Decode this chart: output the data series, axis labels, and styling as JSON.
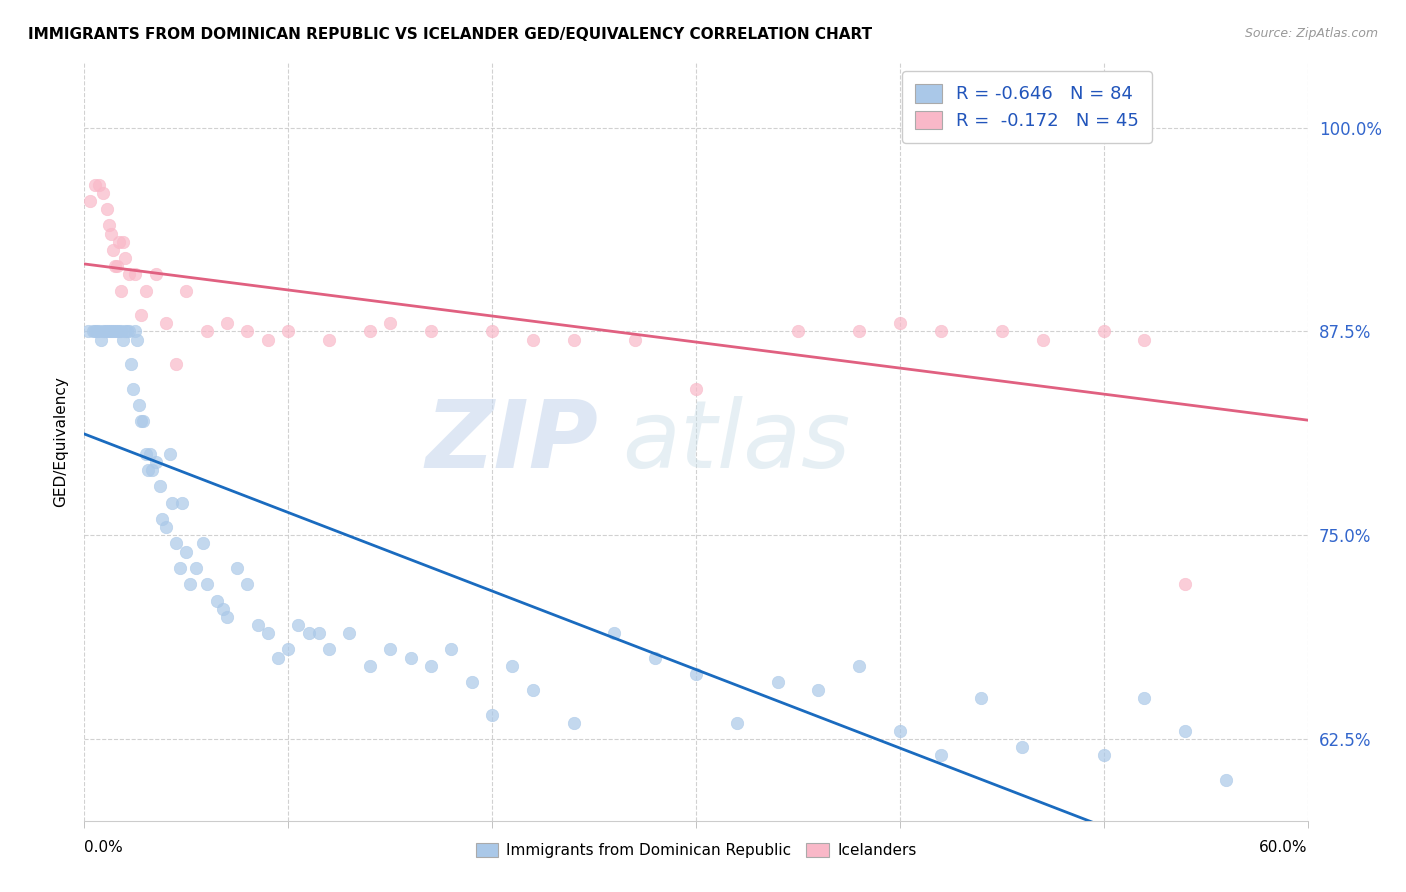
{
  "title": "IMMIGRANTS FROM DOMINICAN REPUBLIC VS ICELANDER GED/EQUIVALENCY CORRELATION CHART",
  "source": "Source: ZipAtlas.com",
  "ylabel": "GED/Equivalency",
  "ytick_labels": [
    "100.0%",
    "87.5%",
    "75.0%",
    "62.5%"
  ],
  "ytick_values": [
    1.0,
    0.875,
    0.75,
    0.625
  ],
  "xlim": [
    0.0,
    0.6
  ],
  "ylim": [
    0.575,
    1.04
  ],
  "blue_R": -0.646,
  "blue_N": 84,
  "pink_R": -0.172,
  "pink_N": 45,
  "blue_color": "#aac8e8",
  "blue_line_color": "#1a6bbf",
  "pink_color": "#f9b8c8",
  "pink_line_color": "#e06080",
  "watermark_zip": "ZIP",
  "watermark_atlas": "atlas",
  "legend_blue_label": "Immigrants from Dominican Republic",
  "legend_pink_label": "Icelanders",
  "blue_x": [
    0.002,
    0.004,
    0.005,
    0.006,
    0.007,
    0.008,
    0.009,
    0.01,
    0.011,
    0.012,
    0.013,
    0.014,
    0.015,
    0.016,
    0.017,
    0.018,
    0.019,
    0.02,
    0.021,
    0.022,
    0.023,
    0.024,
    0.025,
    0.026,
    0.027,
    0.028,
    0.029,
    0.03,
    0.031,
    0.032,
    0.033,
    0.035,
    0.037,
    0.038,
    0.04,
    0.042,
    0.043,
    0.045,
    0.047,
    0.048,
    0.05,
    0.052,
    0.055,
    0.058,
    0.06,
    0.065,
    0.068,
    0.07,
    0.075,
    0.08,
    0.085,
    0.09,
    0.095,
    0.1,
    0.105,
    0.11,
    0.115,
    0.12,
    0.13,
    0.14,
    0.15,
    0.16,
    0.17,
    0.18,
    0.19,
    0.2,
    0.21,
    0.22,
    0.24,
    0.26,
    0.28,
    0.3,
    0.32,
    0.34,
    0.36,
    0.38,
    0.4,
    0.42,
    0.44,
    0.46,
    0.5,
    0.52,
    0.54,
    0.56
  ],
  "blue_y": [
    0.875,
    0.875,
    0.875,
    0.875,
    0.875,
    0.87,
    0.875,
    0.875,
    0.875,
    0.875,
    0.875,
    0.875,
    0.875,
    0.875,
    0.875,
    0.875,
    0.87,
    0.875,
    0.875,
    0.875,
    0.855,
    0.84,
    0.875,
    0.87,
    0.83,
    0.82,
    0.82,
    0.8,
    0.79,
    0.8,
    0.79,
    0.795,
    0.78,
    0.76,
    0.755,
    0.8,
    0.77,
    0.745,
    0.73,
    0.77,
    0.74,
    0.72,
    0.73,
    0.745,
    0.72,
    0.71,
    0.705,
    0.7,
    0.73,
    0.72,
    0.695,
    0.69,
    0.675,
    0.68,
    0.695,
    0.69,
    0.69,
    0.68,
    0.69,
    0.67,
    0.68,
    0.675,
    0.67,
    0.68,
    0.66,
    0.64,
    0.67,
    0.655,
    0.635,
    0.69,
    0.675,
    0.665,
    0.635,
    0.66,
    0.655,
    0.67,
    0.63,
    0.615,
    0.65,
    0.62,
    0.615,
    0.65,
    0.63,
    0.6
  ],
  "pink_x": [
    0.003,
    0.005,
    0.007,
    0.009,
    0.011,
    0.012,
    0.013,
    0.014,
    0.015,
    0.016,
    0.017,
    0.018,
    0.019,
    0.02,
    0.022,
    0.025,
    0.028,
    0.03,
    0.035,
    0.04,
    0.045,
    0.05,
    0.06,
    0.07,
    0.08,
    0.09,
    0.1,
    0.12,
    0.14,
    0.15,
    0.17,
    0.2,
    0.22,
    0.24,
    0.27,
    0.3,
    0.35,
    0.38,
    0.4,
    0.42,
    0.45,
    0.47,
    0.5,
    0.52,
    0.54
  ],
  "pink_y": [
    0.955,
    0.965,
    0.965,
    0.96,
    0.95,
    0.94,
    0.935,
    0.925,
    0.915,
    0.915,
    0.93,
    0.9,
    0.93,
    0.92,
    0.91,
    0.91,
    0.885,
    0.9,
    0.91,
    0.88,
    0.855,
    0.9,
    0.875,
    0.88,
    0.875,
    0.87,
    0.875,
    0.87,
    0.875,
    0.88,
    0.875,
    0.875,
    0.87,
    0.87,
    0.87,
    0.84,
    0.875,
    0.875,
    0.88,
    0.875,
    0.875,
    0.87,
    0.875,
    0.87,
    0.72
  ]
}
